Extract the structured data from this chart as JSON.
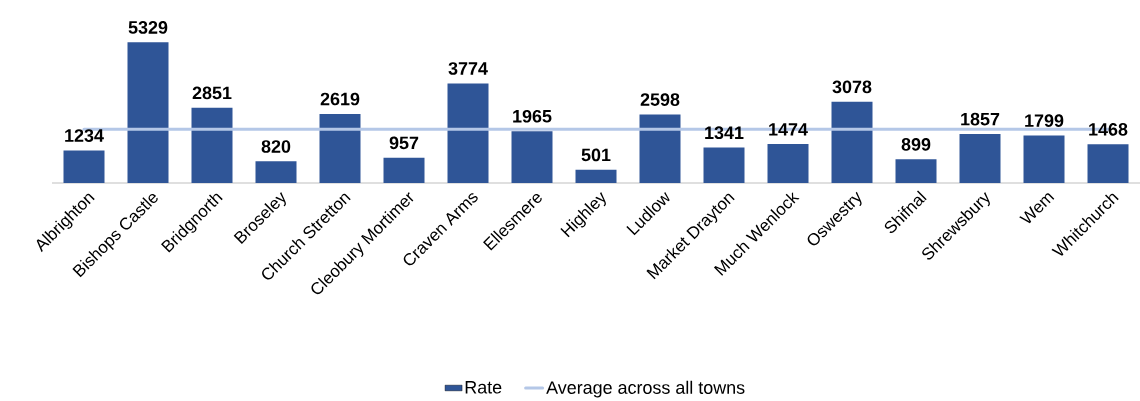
{
  "chart_data": {
    "type": "bar",
    "categories": [
      "Albrighton",
      "Bishops Castle",
      "Bridgnorth",
      "Broseley",
      "Church Stretton",
      "Cleobury Mortimer",
      "Craven Arms",
      "Ellesmere",
      "Highley",
      "Ludlow",
      "Market Drayton",
      "Much Wenlock",
      "Oswestry",
      "Shifnal",
      "Shrewsbury",
      "Wem",
      "Whitchurch"
    ],
    "series": [
      {
        "name": "Rate",
        "color": "#2f5597",
        "values": [
          1234,
          5329,
          2851,
          820,
          2619,
          957,
          3774,
          1965,
          501,
          2598,
          1341,
          1474,
          3078,
          899,
          1857,
          1799,
          1468
        ],
        "value_labels": [
          "1234",
          "5329",
          "2851",
          "820",
          "2619",
          "957",
          "3774",
          "1965",
          "501",
          "2598",
          "1341",
          "1474",
          "3078",
          "899",
          "1857",
          "1799",
          "1468"
        ]
      },
      {
        "name": "Average across all towns",
        "type": "line",
        "color": "#b4c7e7",
        "values": [
          2033,
          2033,
          2033,
          2033,
          2033,
          2033,
          2033,
          2033,
          2033,
          2033,
          2033,
          2033,
          2033,
          2033,
          2033,
          2033,
          2033
        ]
      }
    ],
    "legend": "bottom",
    "marker": "none",
    "line_style": "solid"
  }
}
